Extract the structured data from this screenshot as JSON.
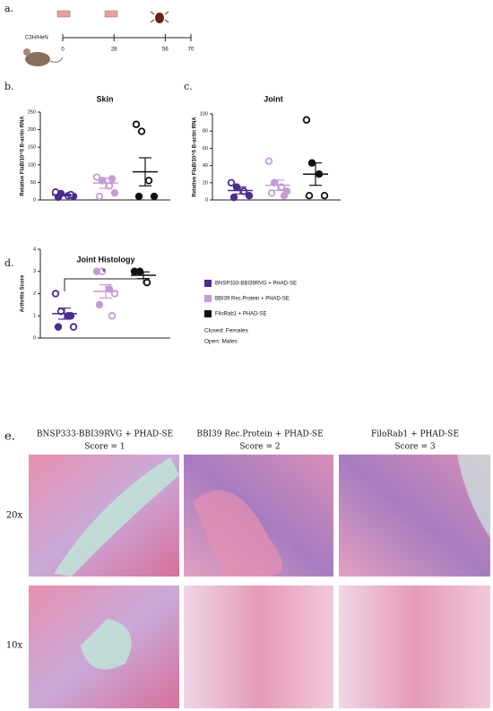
{
  "panel_a": {
    "label": "a.",
    "strain": "C3H/HeN",
    "xlim": [
      0,
      70
    ],
    "xticks": [
      0,
      28,
      56,
      70
    ]
  },
  "chart_data": [
    {
      "type": "dotplot",
      "panel": "b.",
      "title": "Skin",
      "y_label": "Relative FlaB/10^5 B-actin RNA",
      "ylim": [
        0,
        250
      ],
      "yticks": [
        0,
        50,
        100,
        150,
        200,
        250
      ],
      "series": [
        {
          "color": "#4b2c8f",
          "values": [
            22,
            18,
            12,
            10,
            8,
            15
          ],
          "filled": [
            false,
            true,
            false,
            true,
            true,
            false
          ],
          "mean": 14,
          "sem": 2.5
        },
        {
          "color": "#c79bd8",
          "values": [
            65,
            55,
            40,
            20,
            10,
            60
          ],
          "filled": [
            false,
            true,
            false,
            true,
            false,
            true
          ],
          "mean": 48,
          "sem": 15
        },
        {
          "color": "#111111",
          "values": [
            215,
            195,
            55,
            10,
            10
          ],
          "filled": [
            false,
            false,
            false,
            true,
            true
          ],
          "mean": 80,
          "sem": 40
        }
      ]
    },
    {
      "type": "dotplot",
      "panel": "c.",
      "title": "Joint",
      "y_label": "Relative FlaB/10^5 B-actin RNA",
      "ylim": [
        0,
        100
      ],
      "yticks": [
        0,
        20,
        40,
        60,
        80,
        100
      ],
      "series": [
        {
          "color": "#4b2c8f",
          "values": [
            20,
            15,
            10,
            5,
            3
          ],
          "filled": [
            false,
            true,
            false,
            true,
            true
          ],
          "mean": 11,
          "sem": 4
        },
        {
          "color": "#c79bd8",
          "values": [
            45,
            20,
            15,
            10,
            8,
            5
          ],
          "filled": [
            false,
            true,
            false,
            true,
            false,
            true
          ],
          "mean": 17,
          "sem": 6
        },
        {
          "color": "#111111",
          "values": [
            93,
            43,
            30,
            5,
            5
          ],
          "filled": [
            false,
            true,
            true,
            false,
            false
          ],
          "mean": 30,
          "sem": 13
        }
      ]
    },
    {
      "type": "dotplot",
      "panel": "d.",
      "title": "Joint Histology",
      "y_label": "Arthritis Score",
      "ylim": [
        0,
        4
      ],
      "yticks": [
        0,
        1,
        2,
        3,
        4
      ],
      "significance": "*",
      "series": [
        {
          "name": "BNSP333-BBI39RVG + PHAD-SE",
          "color": "#4b2c8f",
          "values": [
            2,
            1.2,
            1,
            0.5,
            0.5,
            1
          ],
          "filled": [
            false,
            false,
            true,
            false,
            true,
            true
          ],
          "mean": 1.1,
          "sem": 0.25
        },
        {
          "name": "BBI39 Rec.Protein + PHAD-SE",
          "color": "#c79bd8",
          "values": [
            3,
            3,
            2.2,
            2,
            1.5,
            1
          ],
          "filled": [
            true,
            false,
            true,
            false,
            true,
            false
          ],
          "mean": 2.1,
          "sem": 0.3
        },
        {
          "name": "FiloRab1 + PHAD-SE",
          "color": "#111111",
          "values": [
            3,
            3,
            2.5
          ],
          "filled": [
            true,
            true,
            false
          ],
          "mean": 2.83,
          "sem": 0.15
        }
      ]
    }
  ],
  "legend_notes": [
    "Closed: Females",
    "Open: Males"
  ],
  "panel_e": {
    "label": "e.",
    "columns": [
      {
        "group": "BNSP333-BBI39RVG + PHAD-SE",
        "score": "Score = 1"
      },
      {
        "group": "BBI39 Rec.Protein + PHAD-SE",
        "score": "Score = 2"
      },
      {
        "group": "FiloRab1 + PHAD-SE",
        "score": "Score = 3"
      }
    ],
    "rows": [
      "20x",
      "10x"
    ]
  }
}
